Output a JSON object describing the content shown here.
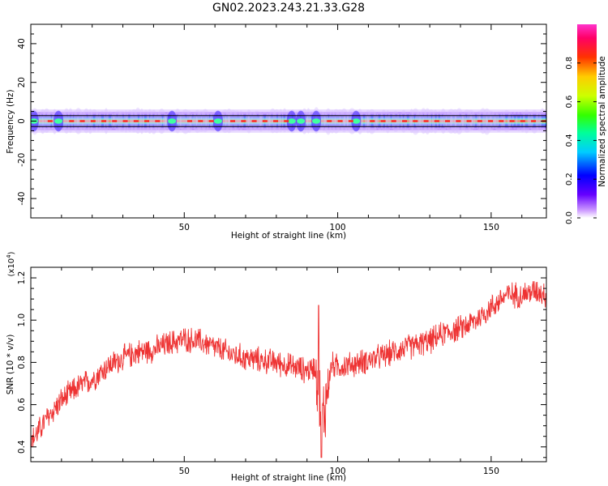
{
  "title": "GN02.2023.243.21.33.G28",
  "chart_data": [
    {
      "type": "heatmap",
      "xlabel": "Height of straight line (km)",
      "ylabel": "Frequency (Hz)",
      "xlim": [
        0,
        168
      ],
      "ylim": [
        -50,
        50
      ],
      "xticks": [
        50,
        100,
        150
      ],
      "yticks": [
        -40,
        -20,
        0,
        20,
        40
      ],
      "colorbar": {
        "label": "Normalized spectral amplitude",
        "range": [
          0,
          1
        ],
        "ticks": [
          "0.0",
          "0.2",
          "0.4",
          "0.6",
          "0.8"
        ],
        "colors": [
          "#ffffff",
          "#cc99ff",
          "#6600ff",
          "#0000ff",
          "#00ccff",
          "#00ff99",
          "#33ff00",
          "#ccff00",
          "#ffcc00",
          "#ff3300",
          "#ff0066",
          "#ff33cc"
        ]
      },
      "band": {
        "center_hz": 0,
        "halfwidth_hz": 3,
        "disturbance_x": [
          1,
          9,
          46,
          61,
          85,
          88,
          93,
          106
        ]
      }
    },
    {
      "type": "line",
      "xlabel": "Height of straight line (km)",
      "ylabel": "SNR (10 * v/v)",
      "yscale_label": "(x10",
      "yscale_exp": "4",
      "yscale_suffix": ")",
      "xlim": [
        0,
        168
      ],
      "ylim": [
        0.33,
        1.25
      ],
      "xticks": [
        50,
        100,
        150
      ],
      "yticks": [
        "0.4",
        "0.6",
        "0.8",
        "1.0",
        "1.2"
      ],
      "ytick_values": [
        0.4,
        0.6,
        0.8,
        1.0,
        1.2
      ],
      "series": [
        {
          "color": "#ee3333",
          "x": [
            0,
            5,
            10,
            15,
            20,
            25,
            30,
            35,
            40,
            45,
            50,
            55,
            60,
            65,
            70,
            75,
            80,
            85,
            88,
            90,
            93,
            95,
            98,
            100,
            105,
            110,
            115,
            120,
            125,
            130,
            135,
            140,
            145,
            150,
            155,
            160,
            165,
            168
          ],
          "y": [
            0.42,
            0.53,
            0.62,
            0.68,
            0.72,
            0.78,
            0.82,
            0.85,
            0.86,
            0.89,
            0.91,
            0.9,
            0.87,
            0.84,
            0.82,
            0.81,
            0.8,
            0.78,
            0.77,
            0.76,
            0.78,
            0.52,
            0.79,
            0.78,
            0.79,
            0.81,
            0.83,
            0.86,
            0.88,
            0.9,
            0.94,
            0.96,
            1.0,
            1.06,
            1.12,
            1.12,
            1.14,
            1.12
          ]
        }
      ]
    }
  ]
}
